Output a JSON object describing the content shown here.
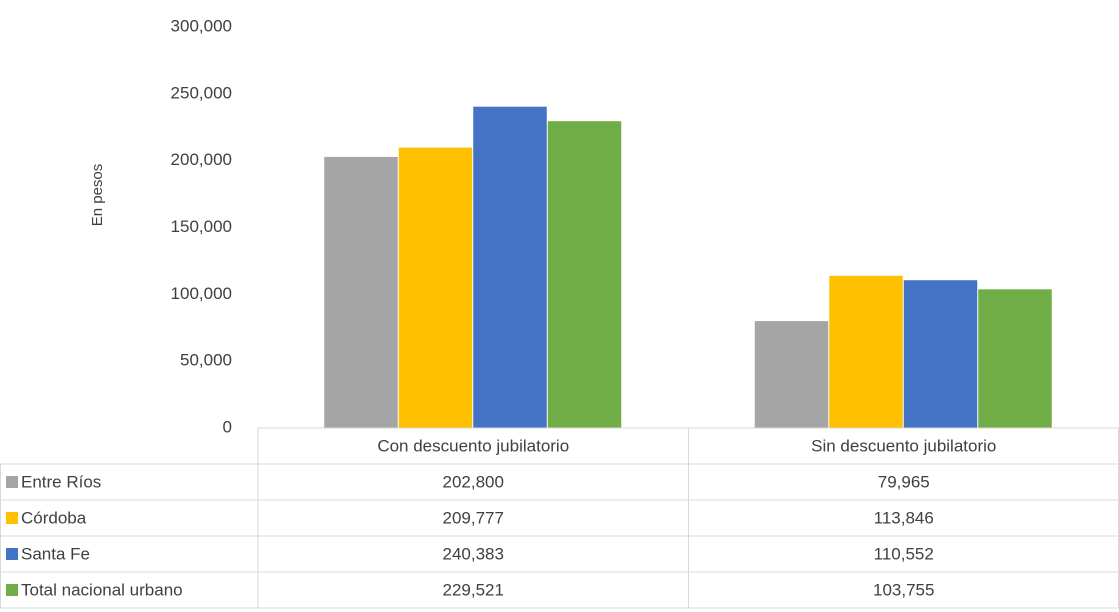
{
  "chart_data": {
    "type": "bar",
    "y_label": "En pesos",
    "categories": [
      "Con descuento jubilatorio",
      "Sin descuento jubilatorio"
    ],
    "series": [
      {
        "name": "Entre Ríos",
        "color": "#a5a5a5",
        "values": [
          202800,
          79965
        ],
        "value_labels": [
          "202,800",
          "79,965"
        ]
      },
      {
        "name": "Córdoba",
        "color": "#ffc000",
        "values": [
          209777,
          113846
        ],
        "value_labels": [
          "209,777",
          "113,846"
        ]
      },
      {
        "name": "Santa Fe",
        "color": "#4472c4",
        "values": [
          240383,
          110552
        ],
        "value_labels": [
          "240,383",
          "110,552"
        ]
      },
      {
        "name": "Total nacional urbano",
        "color": "#70ad47",
        "values": [
          229521,
          103755
        ],
        "value_labels": [
          "229,521",
          "103,755"
        ]
      }
    ],
    "ylim": [
      0,
      300000
    ],
    "yticks": [
      0,
      {
        "value": 50000,
        "label": "50,000"
      },
      {
        "value": 100000,
        "label": "100,000"
      },
      {
        "value": 150000,
        "label": "150,000"
      },
      {
        "value": 200000,
        "label": "200,000"
      },
      {
        "value": 250000,
        "label": "250,000"
      },
      {
        "value": 300000,
        "label": "300,000"
      }
    ],
    "grid": false,
    "data_table": true
  }
}
